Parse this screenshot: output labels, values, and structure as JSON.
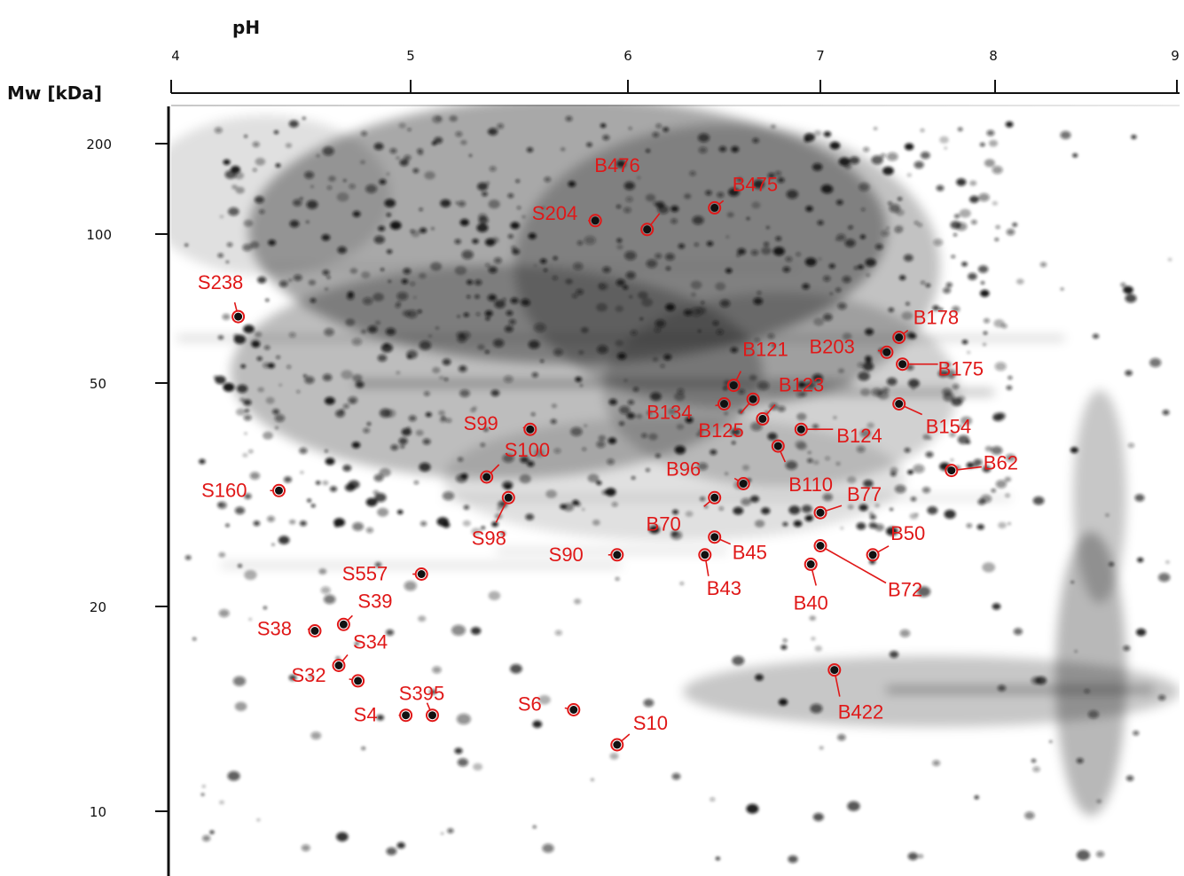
{
  "axes": {
    "x_title": "pH",
    "y_title": "Mw [kDa]",
    "x_ticks": [
      "4",
      "5",
      "6",
      "7",
      "8",
      "9"
    ],
    "y_ticks": [
      "200",
      "100",
      "50",
      "20",
      "10"
    ]
  },
  "colors": {
    "annotation": "#e01818",
    "axis": "#111111",
    "gel_spot": "#101010"
  },
  "spots": [
    {
      "label": "B476",
      "pH": 6.1,
      "mw": 102
    },
    {
      "label": "B475",
      "pH": 6.45,
      "mw": 112
    },
    {
      "label": "S204",
      "pH": 5.85,
      "mw": 106
    },
    {
      "label": "S238",
      "pH": 4.28,
      "mw": 70
    },
    {
      "label": "B178",
      "pH": 7.45,
      "mw": 64
    },
    {
      "label": "B203",
      "pH": 7.38,
      "mw": 60
    },
    {
      "label": "B121",
      "pH": 6.55,
      "mw": 52
    },
    {
      "label": "B175",
      "pH": 7.47,
      "mw": 57
    },
    {
      "label": "B123",
      "pH": 6.7,
      "mw": 45
    },
    {
      "label": "B134",
      "pH": 6.5,
      "mw": 48
    },
    {
      "label": "B154",
      "pH": 7.45,
      "mw": 48
    },
    {
      "label": "S99",
      "pH": 5.55,
      "mw": 43
    },
    {
      "label": "B124",
      "pH": 6.9,
      "mw": 43
    },
    {
      "label": "B125",
      "pH": 6.65,
      "mw": 49
    },
    {
      "label": "B110",
      "pH": 6.78,
      "mw": 40
    },
    {
      "label": "S100",
      "pH": 5.35,
      "mw": 35
    },
    {
      "label": "B62",
      "pH": 7.75,
      "mw": 36
    },
    {
      "label": "B96",
      "pH": 6.6,
      "mw": 34
    },
    {
      "label": "S160",
      "pH": 4.45,
      "mw": 33
    },
    {
      "label": "B77",
      "pH": 7.0,
      "mw": 30
    },
    {
      "label": "S98",
      "pH": 5.45,
      "mw": 32
    },
    {
      "label": "B70",
      "pH": 6.45,
      "mw": 32
    },
    {
      "label": "B50",
      "pH": 7.3,
      "mw": 25
    },
    {
      "label": "S90",
      "pH": 5.95,
      "mw": 25
    },
    {
      "label": "B45",
      "pH": 6.45,
      "mw": 27
    },
    {
      "label": "B72",
      "pH": 7.0,
      "mw": 26
    },
    {
      "label": "S557",
      "pH": 5.05,
      "mw": 23
    },
    {
      "label": "B43",
      "pH": 6.4,
      "mw": 25
    },
    {
      "label": "B40",
      "pH": 6.95,
      "mw": 24
    },
    {
      "label": "S39",
      "pH": 4.72,
      "mw": 18.5
    },
    {
      "label": "S38",
      "pH": 4.6,
      "mw": 18
    },
    {
      "label": "S34",
      "pH": 4.7,
      "mw": 15.5
    },
    {
      "label": "S32",
      "pH": 4.78,
      "mw": 14.5
    },
    {
      "label": "B422",
      "pH": 7.08,
      "mw": 15.2
    },
    {
      "label": "S395",
      "pH": 5.1,
      "mw": 12.5
    },
    {
      "label": "S4",
      "pH": 4.98,
      "mw": 12.5
    },
    {
      "label": "S6",
      "pH": 5.75,
      "mw": 12.8
    },
    {
      "label": "S10",
      "pH": 5.95,
      "mw": 11
    }
  ]
}
